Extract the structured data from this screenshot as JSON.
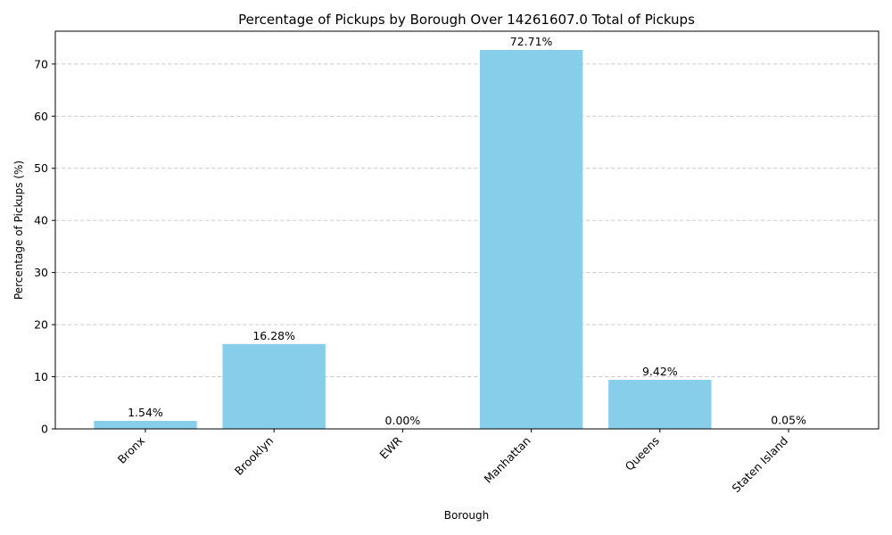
{
  "chart_data": {
    "type": "bar",
    "title": "Percentage of Pickups by Borough Over 14261607.0 Total of Pickups",
    "xlabel": "Borough",
    "ylabel": "Percentage of Pickups (%)",
    "categories": [
      "Bronx",
      "Brooklyn",
      "EWR",
      "Manhattan",
      "Queens",
      "Staten Island"
    ],
    "values": [
      1.54,
      16.28,
      0.0,
      72.71,
      9.42,
      0.05
    ],
    "data_labels": [
      "1.54%",
      "16.28%",
      "0.00%",
      "72.71%",
      "9.42%",
      "0.05%"
    ],
    "ylim": [
      0,
      76.3
    ],
    "yticks": [
      0,
      10,
      20,
      30,
      40,
      50,
      60,
      70
    ],
    "ytick_labels": [
      "0",
      "10",
      "20",
      "30",
      "40",
      "50",
      "60",
      "70"
    ],
    "grid": "y-axis dashed",
    "bar_color": "#87ceeb"
  }
}
